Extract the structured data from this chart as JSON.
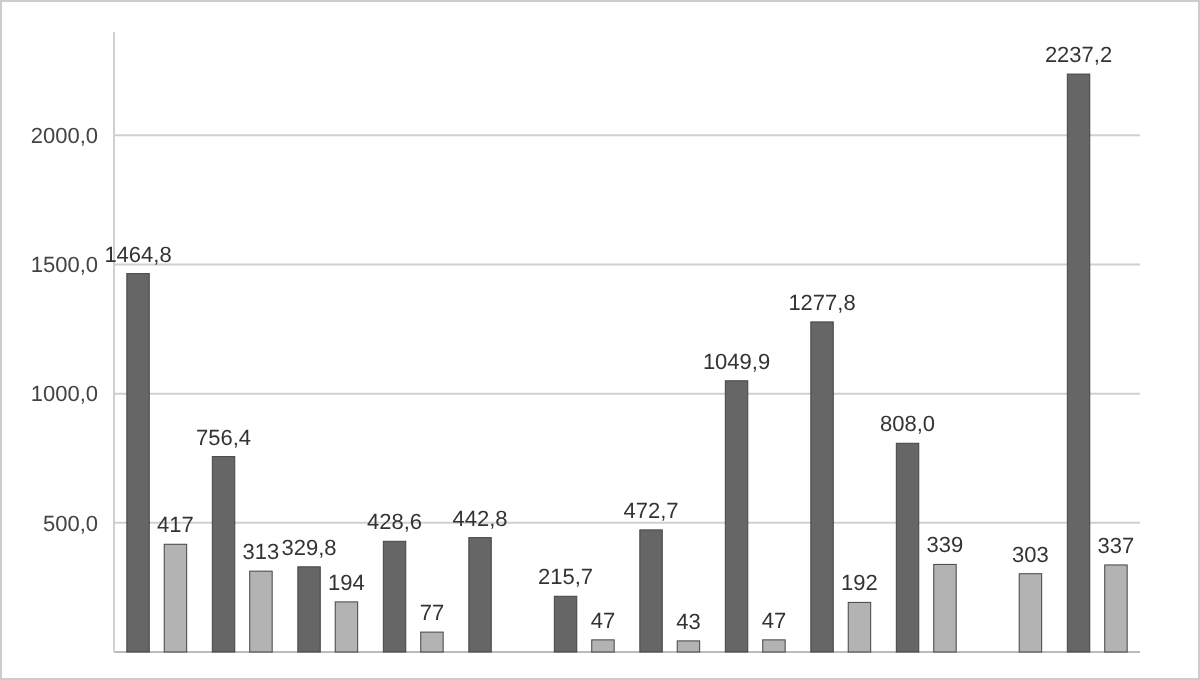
{
  "chart_data": {
    "type": "bar",
    "categories": [
      null,
      null,
      null,
      null,
      null,
      null,
      null,
      null,
      null,
      null,
      null,
      null
    ],
    "series": [
      {
        "color": "#666666",
        "values": [
          1464.8,
          756.4,
          329.8,
          428.6,
          442.8,
          215.7,
          472.7,
          1049.9,
          1277.8,
          808.0,
          null,
          2237.2
        ],
        "value_labels": [
          "1464,8",
          "756,4",
          "329,8",
          "428,6",
          "442,8",
          "215,7",
          "472,7",
          "1049,9",
          "1277,8",
          "808,0",
          null,
          "2237,2"
        ]
      },
      {
        "color": "#b3b3b3",
        "values": [
          417,
          313,
          194,
          77,
          null,
          47,
          43,
          47,
          192,
          339,
          303,
          337
        ],
        "value_labels": [
          "417",
          "313",
          "194",
          "77",
          null,
          "47",
          "43",
          "47",
          "192",
          "339",
          "303",
          "337"
        ]
      }
    ],
    "ylim": [
      0,
      2400
    ],
    "yticks": [
      {
        "value": 500,
        "label": "500,0"
      },
      {
        "value": 1000,
        "label": "1000,0"
      },
      {
        "value": 1500,
        "label": "1500,0"
      },
      {
        "value": 2000,
        "label": "2000,0"
      }
    ],
    "grid": "y"
  }
}
